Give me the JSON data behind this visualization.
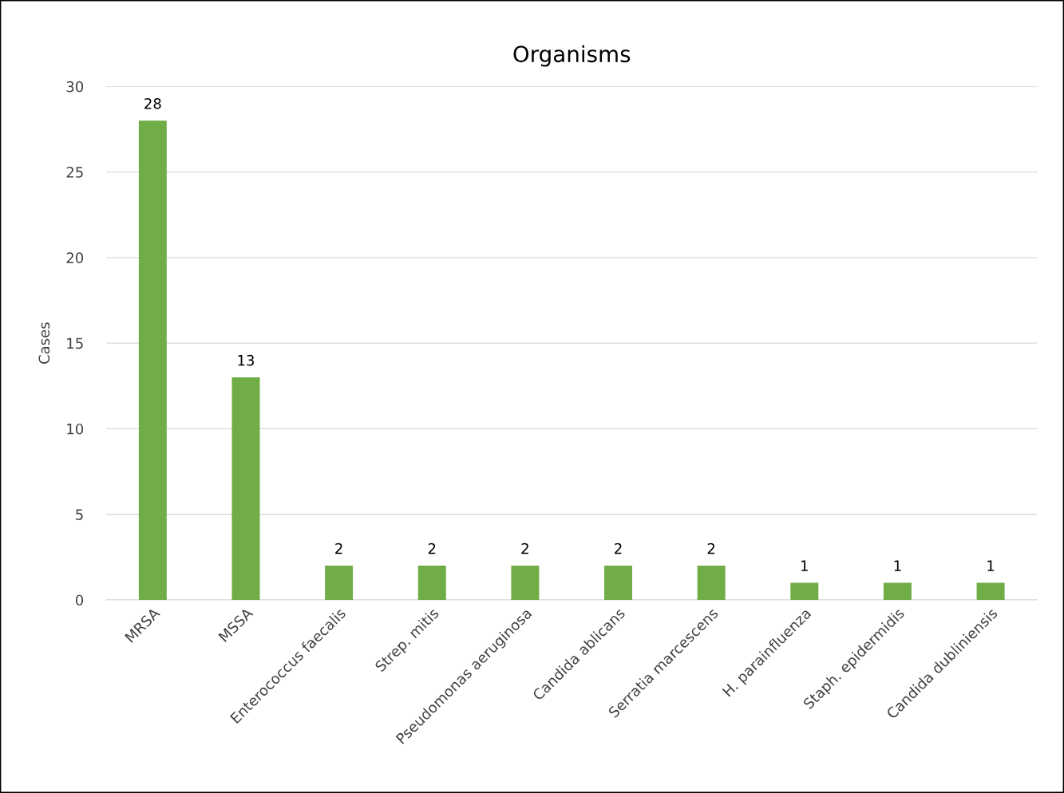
{
  "chart_data": {
    "type": "bar",
    "title": "Organisms",
    "ylabel": "Cases",
    "categories": [
      "MRSA",
      "MSSA",
      "Enterococcus faecalis",
      "Strep. mitis",
      "Pseudomonas aeruginosa",
      "Candida ablicans",
      "Serratia marcescens",
      "H. parainfluenza",
      "Staph. epidermidis",
      "Candida dubliniensis"
    ],
    "values": [
      28,
      13,
      2,
      2,
      2,
      2,
      2,
      1,
      1,
      1
    ],
    "color": "#70ad47",
    "ylim": [
      0,
      30
    ],
    "yticks": [
      0,
      5,
      10,
      15,
      20,
      25,
      30
    ],
    "grid": "y",
    "data_labels": true
  }
}
